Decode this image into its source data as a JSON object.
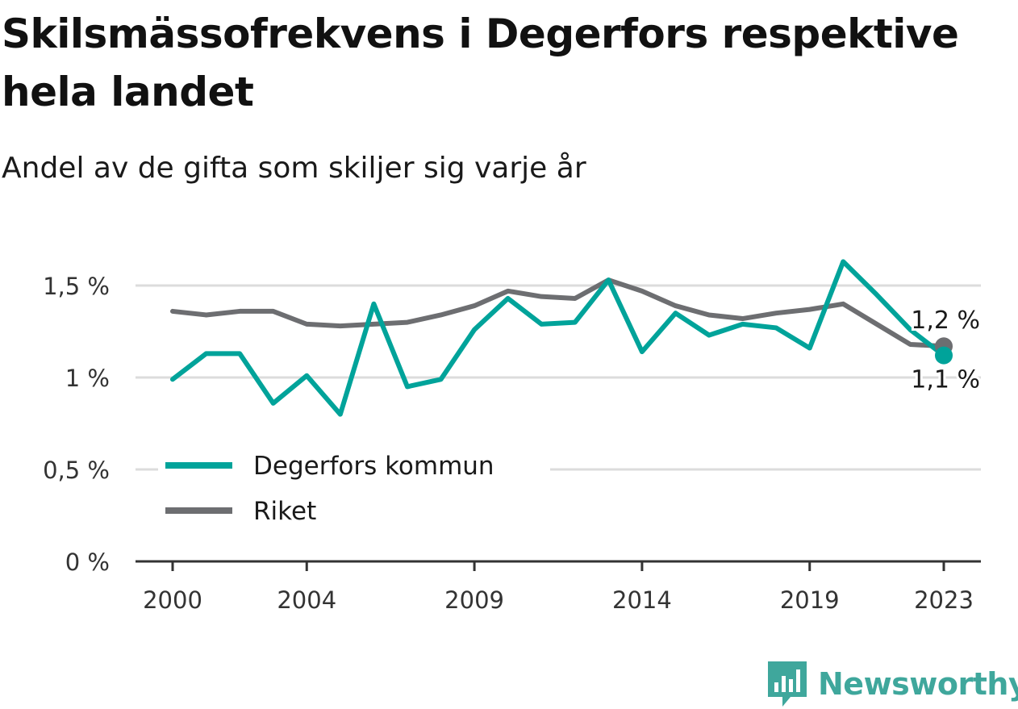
{
  "title": "Skilsmässofrekvens i Degerfors respektive hela landet",
  "subtitle": "Andel av de gifta som skiljer sig varje år",
  "brand": {
    "name": "Newsworthy",
    "color": "#3fa79c"
  },
  "chart_data": {
    "type": "line",
    "title": "Skilsmässofrekvens i Degerfors respektive hela landet",
    "subtitle": "Andel av de gifta som skiljer sig varje år",
    "x": [
      2000,
      2001,
      2002,
      2003,
      2004,
      2005,
      2006,
      2007,
      2008,
      2009,
      2010,
      2011,
      2012,
      2013,
      2014,
      2015,
      2016,
      2017,
      2018,
      2019,
      2020,
      2021,
      2022,
      2023
    ],
    "x_ticks": [
      2000,
      2004,
      2009,
      2014,
      2019,
      2023
    ],
    "x_tick_labels": [
      "2000",
      "2004",
      "2009",
      "2014",
      "2019",
      "2023"
    ],
    "y_ticks": [
      0,
      0.5,
      1,
      1.5
    ],
    "y_tick_labels": [
      "0 %",
      "0,5 %",
      "1 %",
      "1,5 %"
    ],
    "ylim": [
      0,
      1.65
    ],
    "grid": "horizontal",
    "legend": "middle-left",
    "series": [
      {
        "name": "Degerfors kommun",
        "color": "#00a39a",
        "values": [
          0.99,
          1.13,
          1.13,
          0.86,
          1.01,
          0.8,
          1.4,
          0.95,
          0.99,
          1.26,
          1.43,
          1.29,
          1.3,
          1.53,
          1.14,
          1.35,
          1.23,
          1.29,
          1.27,
          1.16,
          1.63,
          1.45,
          1.26,
          1.12
        ],
        "end_label": "1,1 %"
      },
      {
        "name": "Riket",
        "color": "#6d6e71",
        "values": [
          1.36,
          1.34,
          1.36,
          1.36,
          1.29,
          1.28,
          1.29,
          1.3,
          1.34,
          1.39,
          1.47,
          1.44,
          1.43,
          1.53,
          1.47,
          1.39,
          1.34,
          1.32,
          1.35,
          1.37,
          1.4,
          1.29,
          1.18,
          1.17
        ],
        "end_label": "1,2 %"
      }
    ]
  }
}
